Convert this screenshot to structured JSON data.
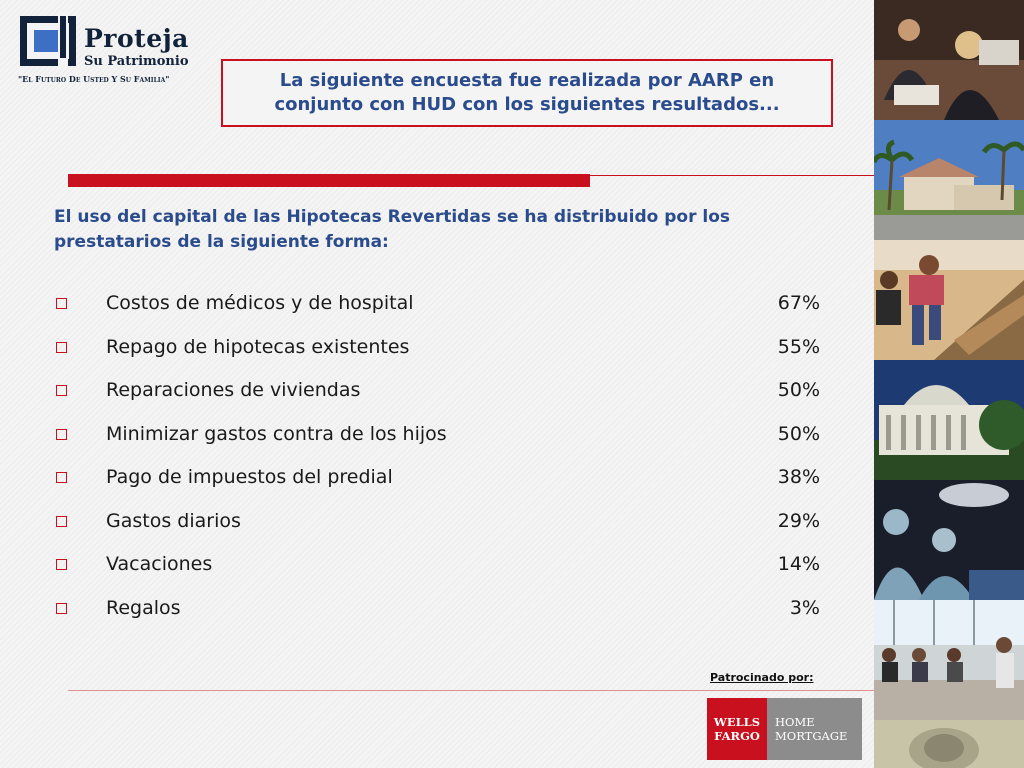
{
  "logo": {
    "name": "Proteja",
    "subtitle": "Su Patrimonio",
    "tagline": "\"El Futuro De Usted Y Su Familia\""
  },
  "header": {
    "title": "La siguiente encuesta fue realizada por AARP en conjunto con HUD con los siguientes resultados..."
  },
  "intro": "El uso del capital de las Hipotecas Revertidas se ha distribuido por los prestatarios de la siguiente forma:",
  "items": [
    {
      "label": "Costos de médicos y de hospital",
      "value": "67%"
    },
    {
      "label": "Repago de hipotecas existentes",
      "value": "55%"
    },
    {
      "label": "Reparaciones de viviendas",
      "value": "50%"
    },
    {
      "label": "Minimizar gastos contra de los hijos",
      "value": "50%"
    },
    {
      "label": "Pago de impuestos del predial",
      "value": "38%"
    },
    {
      "label": "Gastos diarios",
      "value": "29%"
    },
    {
      "label": "Vacaciones",
      "value": "14%"
    },
    {
      "label": "Regalos",
      "value": "3%"
    }
  ],
  "sponsor": {
    "label": "Patrocinado por:",
    "brand_line1": "WELLS",
    "brand_line2": "FARGO",
    "product_line1": "HOME",
    "product_line2": "MORTGAGE"
  },
  "colors": {
    "accent_red": "#c8101e",
    "heading_blue": "#2b4c8c",
    "logo_navy": "#12223a"
  }
}
